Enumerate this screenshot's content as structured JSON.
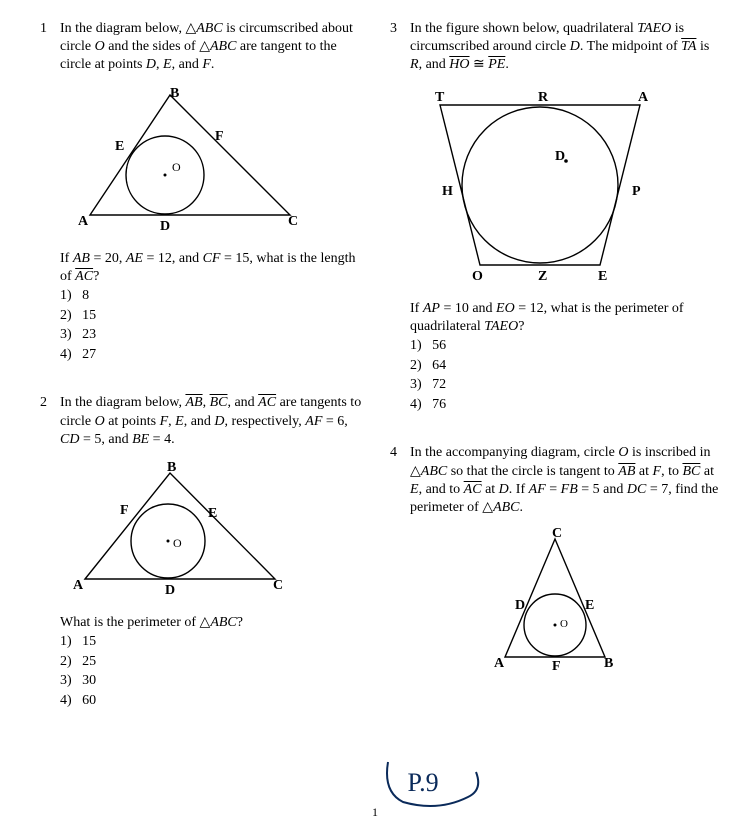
{
  "problems": {
    "p1": {
      "num": "1",
      "text_html": "In the diagram below, △<span class='italic'>ABC</span> is circumscribed about circle <span class='italic'>O</span> and the sides of △<span class='italic'>ABC</span> are tangent to the circle at points <span class='italic'>D</span>, <span class='italic'>E</span>, and <span class='italic'>F</span>.",
      "after_html": "If <span class='italic'>AB</span> = 20, <span class='italic'>AE</span> = 12, and <span class='italic'>CF</span> = 15, what is the length of <span class='italic over'>AC</span>?",
      "choices": [
        "1)   8",
        "2)   15",
        "3)   23",
        "4)   27"
      ],
      "labels": {
        "A": "A",
        "B": "B",
        "C": "C",
        "D": "D",
        "E": "E",
        "F": "F",
        "O": "O"
      }
    },
    "p2": {
      "num": "2",
      "text_html": "In the diagram below, <span class='italic over'>AB</span>, <span class='italic over'>BC</span>, and <span class='italic over'>AC</span> are tangents to circle <span class='italic'>O</span> at points <span class='italic'>F</span>, <span class='italic'>E</span>, and <span class='italic'>D</span>, respectively, <span class='italic'>AF</span> = 6, <span class='italic'>CD</span> = 5, and <span class='italic'>BE</span> = 4.",
      "after_html": "What is the perimeter of △<span class='italic'>ABC</span>?",
      "choices": [
        "1)   15",
        "2)   25",
        "3)   30",
        "4)   60"
      ],
      "labels": {
        "A": "A",
        "B": "B",
        "C": "C",
        "D": "D",
        "E": "E",
        "F": "F",
        "O": "O"
      }
    },
    "p3": {
      "num": "3",
      "text_html": "In the figure shown below, quadrilateral <span class='italic'>TAEO</span> is circumscribed around circle <span class='italic'>D</span>. The midpoint of <span class='italic over'>TA</span> is <span class='italic'>R</span>, and <span class='italic over'>HO</span> ≅ <span class='italic over'>PE</span>.",
      "after_html": "If <span class='italic'>AP</span> = 10 and <span class='italic'>EO</span> = 12, what is the perimeter of quadrilateral <span class='italic'>TAEO</span>?",
      "choices": [
        "1)   56",
        "2)   64",
        "3)   72",
        "4)   76"
      ],
      "labels": {
        "T": "T",
        "R": "R",
        "A": "A",
        "H": "H",
        "D": "D",
        "P": "P",
        "O": "O",
        "Z": "Z",
        "E": "E"
      }
    },
    "p4": {
      "num": "4",
      "text_html": "In the accompanying diagram, circle <span class='italic'>O</span> is inscribed in △<span class='italic'>ABC</span> so that the circle is tangent to <span class='italic over'>AB</span> at <span class='italic'>F</span>, to <span class='italic over'>BC</span> at <span class='italic'>E</span>, and to <span class='italic over'>AC</span> at <span class='italic'>D</span>. If <span class='italic'>AF</span> = <span class='italic'>FB</span> = 5 and <span class='italic'>DC</span> = 7, find the perimeter of △<span class='italic'>ABC</span>.",
      "labels": {
        "A": "A",
        "B": "B",
        "C": "C",
        "D": "D",
        "E": "E",
        "F": "F",
        "O": "O"
      }
    }
  },
  "page_number": "1",
  "annotation": "P.9",
  "style": {
    "stroke": "#000000",
    "stroke_width": 1.4,
    "bg": "#ffffff",
    "pen_color": "#0a2a5a"
  }
}
